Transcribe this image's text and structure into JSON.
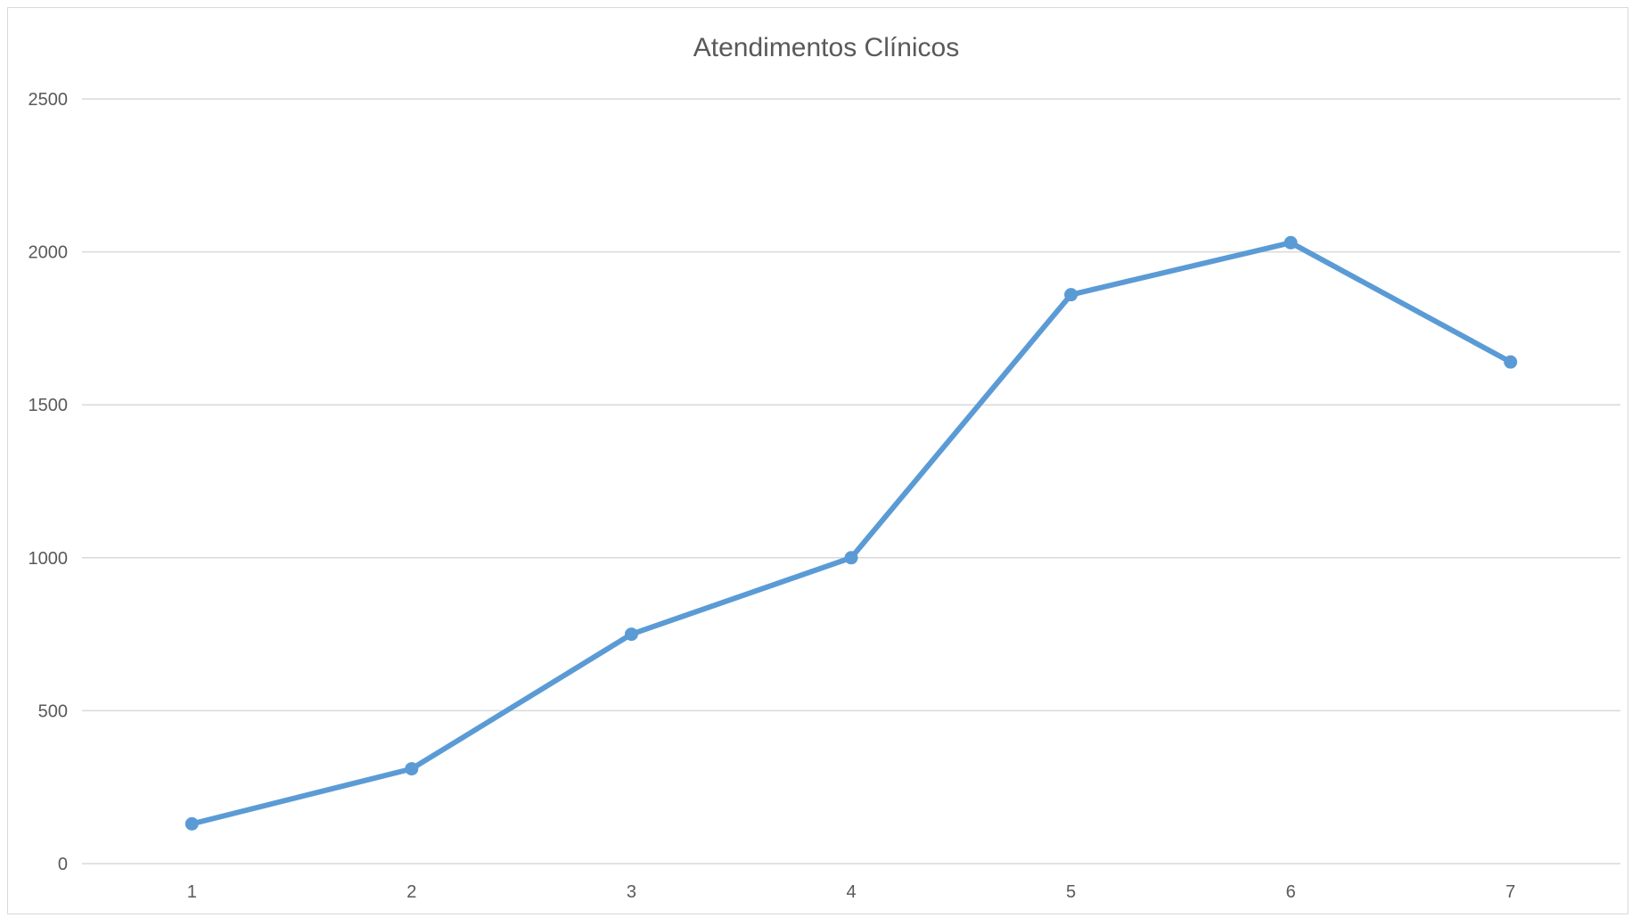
{
  "chart_data": {
    "type": "line",
    "title": "Atendimentos Clínicos",
    "xlabel": "",
    "ylabel": "",
    "categories": [
      "1",
      "2",
      "3",
      "4",
      "5",
      "6",
      "7"
    ],
    "series": [
      {
        "values": [
          130,
          310,
          750,
          1000,
          1860,
          2030,
          1640
        ],
        "color": "#5b9bd5"
      }
    ],
    "ylim": [
      0,
      2500
    ],
    "yticks": [
      "0",
      "500",
      "1000",
      "1500",
      "2000",
      "2500"
    ],
    "grid": true,
    "legend": "none"
  }
}
